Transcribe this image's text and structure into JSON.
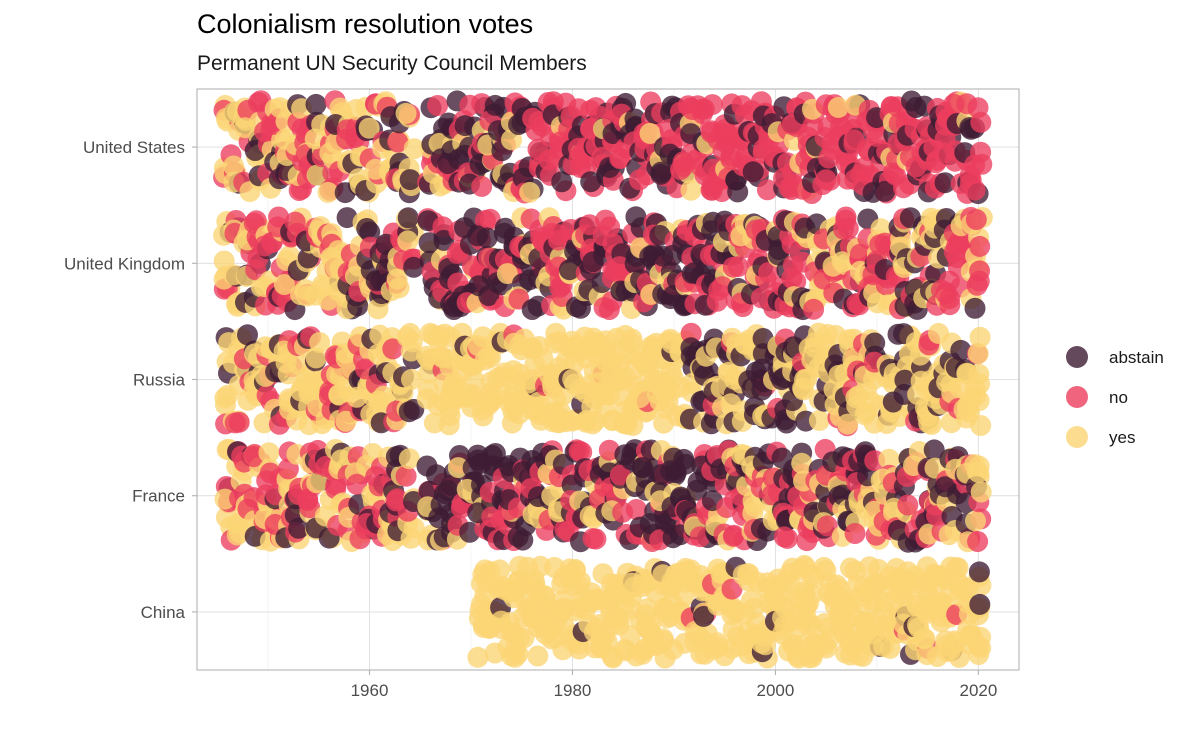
{
  "chart_data": {
    "type": "scatter",
    "title": "Colonialism resolution votes",
    "subtitle": "Permanent UN Security Council Members",
    "xlabel": "",
    "ylabel": "",
    "x_ticks": [
      1960,
      1980,
      2000,
      2020
    ],
    "xlim": [
      1943,
      2024
    ],
    "grid": true,
    "legend_position": "right",
    "categories": [
      "United States",
      "United Kingdom",
      "Russia",
      "France",
      "China"
    ],
    "legend": [
      {
        "name": "abstain",
        "color": "#3d1c33"
      },
      {
        "name": "no",
        "color": "#ec3d5e"
      },
      {
        "name": "yes",
        "color": "#fbd574"
      }
    ],
    "series": [
      {
        "name": "United States",
        "segments": [
          {
            "years": [
              1946,
              1958
            ],
            "mix": {
              "yes": 0.45,
              "no": 0.4,
              "abstain": 0.15
            }
          },
          {
            "years": [
              1959,
              1964
            ],
            "mix": {
              "yes": 0.5,
              "no": 0.25,
              "abstain": 0.25
            }
          },
          {
            "years": [
              1966,
              1978
            ],
            "mix": {
              "yes": 0.1,
              "no": 0.45,
              "abstain": 0.45
            }
          },
          {
            "years": [
              1979,
              1990
            ],
            "mix": {
              "yes": 0.05,
              "no": 0.6,
              "abstain": 0.35
            }
          },
          {
            "years": [
              1991,
              2020
            ],
            "mix": {
              "yes": 0.1,
              "no": 0.72,
              "abstain": 0.18
            }
          }
        ]
      },
      {
        "name": "United Kingdom",
        "segments": [
          {
            "years": [
              1946,
              1958
            ],
            "mix": {
              "yes": 0.5,
              "no": 0.35,
              "abstain": 0.15
            }
          },
          {
            "years": [
              1959,
              1964
            ],
            "mix": {
              "yes": 0.4,
              "no": 0.35,
              "abstain": 0.25
            }
          },
          {
            "years": [
              1966,
              1995
            ],
            "mix": {
              "yes": 0.2,
              "no": 0.4,
              "abstain": 0.4
            }
          },
          {
            "years": [
              1996,
              2020
            ],
            "mix": {
              "yes": 0.3,
              "no": 0.45,
              "abstain": 0.25
            }
          }
        ]
      },
      {
        "name": "Russia",
        "segments": [
          {
            "years": [
              1946,
              1958
            ],
            "mix": {
              "yes": 0.6,
              "no": 0.25,
              "abstain": 0.15
            }
          },
          {
            "years": [
              1959,
              1964
            ],
            "mix": {
              "yes": 0.65,
              "no": 0.15,
              "abstain": 0.2
            }
          },
          {
            "years": [
              1966,
              1991
            ],
            "mix": {
              "yes": 0.95,
              "no": 0.02,
              "abstain": 0.03
            }
          },
          {
            "years": [
              1992,
              2003
            ],
            "mix": {
              "yes": 0.5,
              "no": 0.05,
              "abstain": 0.45
            }
          },
          {
            "years": [
              2004,
              2020
            ],
            "mix": {
              "yes": 0.7,
              "no": 0.1,
              "abstain": 0.2
            }
          }
        ]
      },
      {
        "name": "France",
        "segments": [
          {
            "years": [
              1946,
              1958
            ],
            "mix": {
              "yes": 0.45,
              "no": 0.4,
              "abstain": 0.15
            }
          },
          {
            "years": [
              1959,
              1964
            ],
            "mix": {
              "yes": 0.3,
              "no": 0.35,
              "abstain": 0.35
            }
          },
          {
            "years": [
              1966,
              1995
            ],
            "mix": {
              "yes": 0.2,
              "no": 0.3,
              "abstain": 0.5
            }
          },
          {
            "years": [
              1996,
              2020
            ],
            "mix": {
              "yes": 0.35,
              "no": 0.3,
              "abstain": 0.35
            }
          }
        ]
      },
      {
        "name": "China",
        "segments": [
          {
            "years": [
              1971,
              2020
            ],
            "mix": {
              "yes": 0.95,
              "no": 0.02,
              "abstain": 0.03
            }
          }
        ]
      }
    ]
  }
}
